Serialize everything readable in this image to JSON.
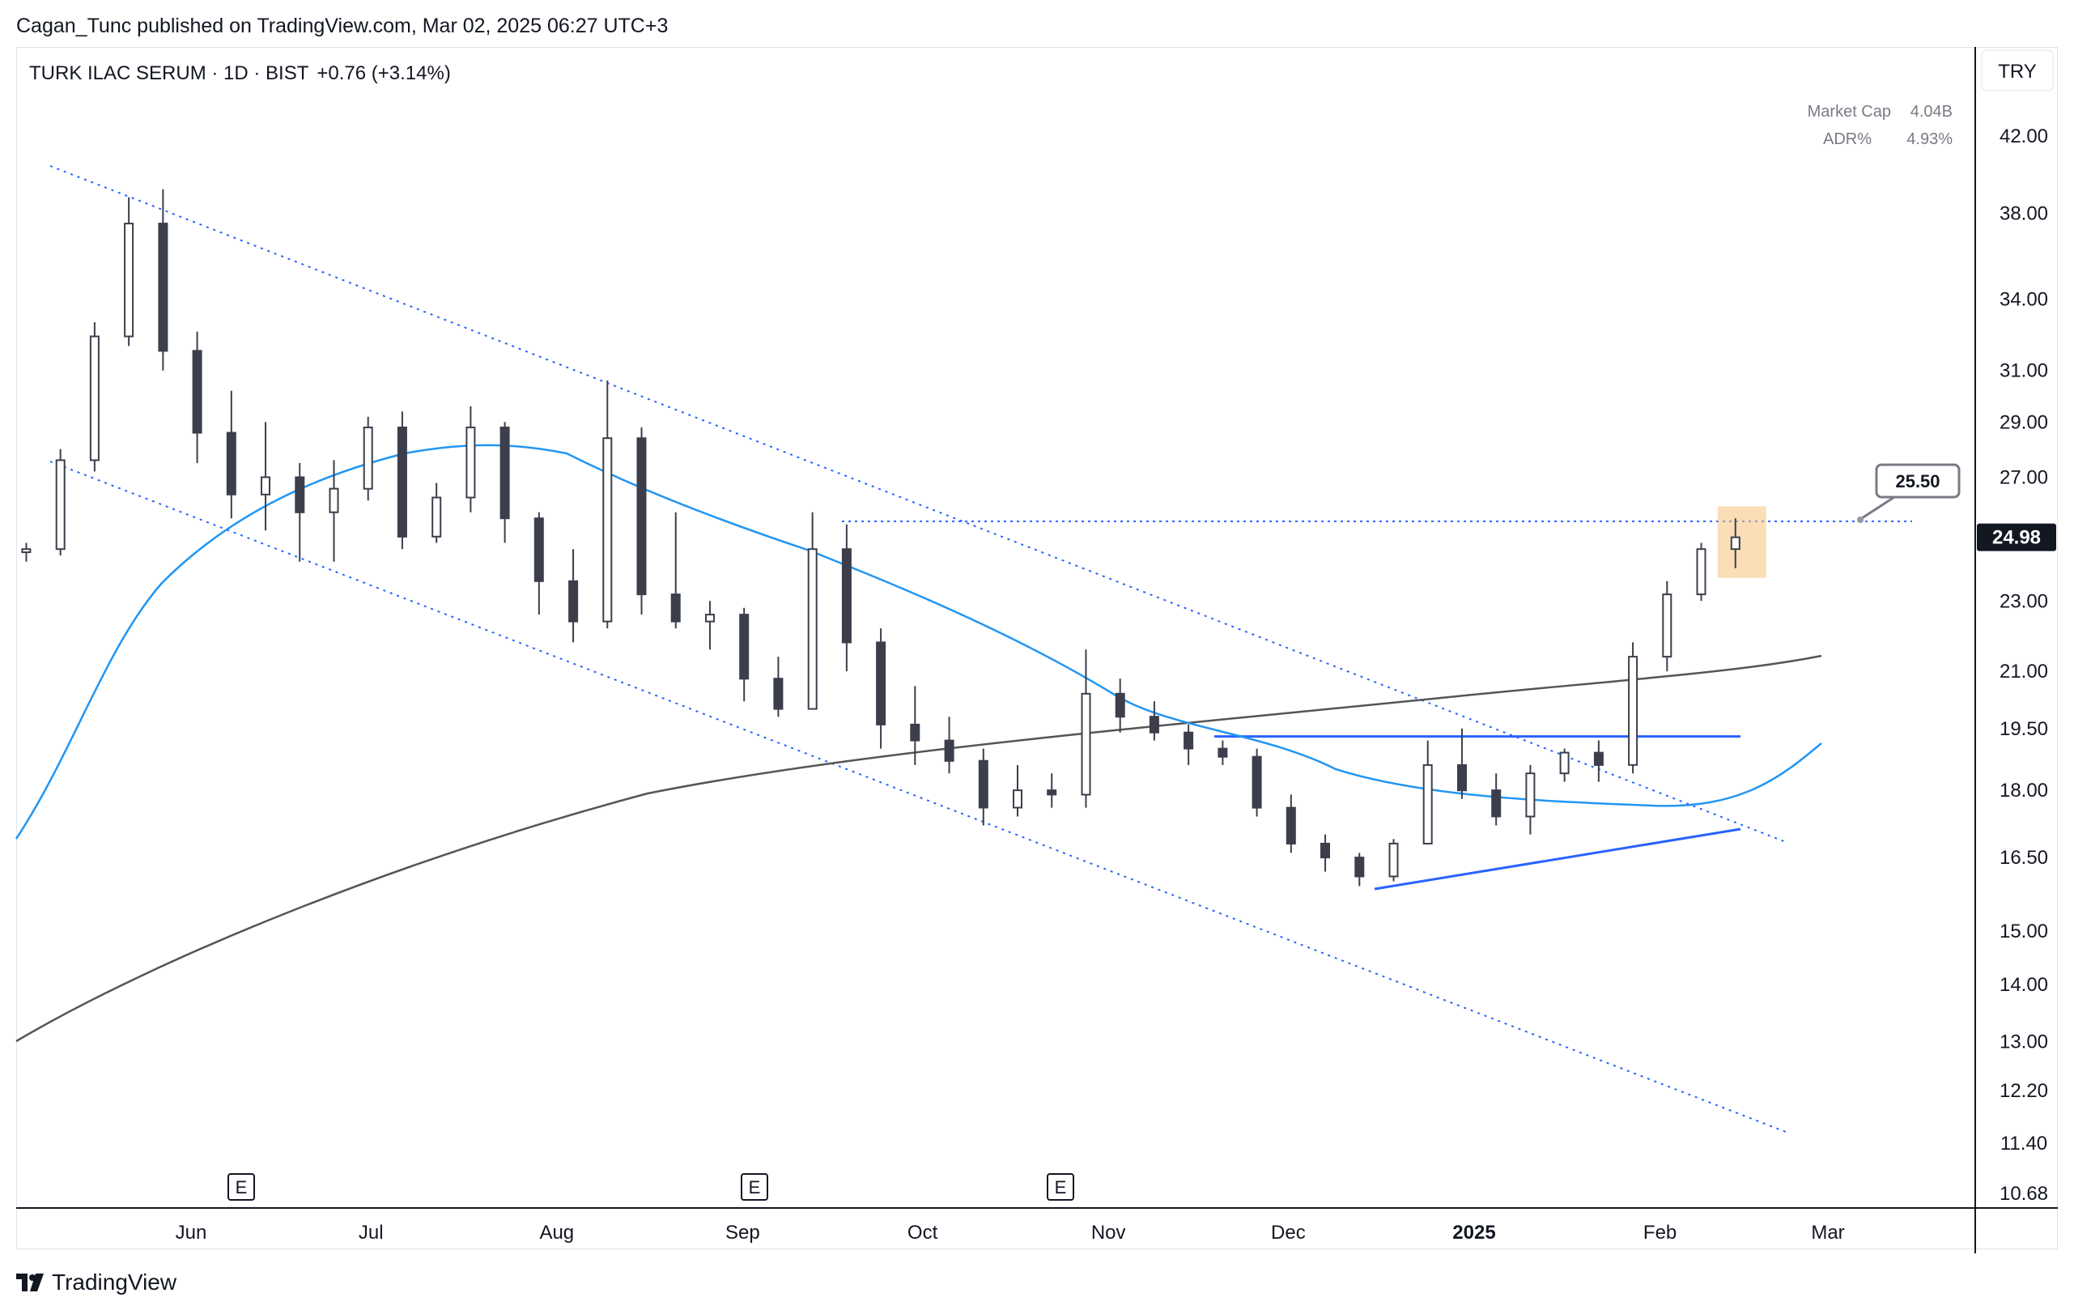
{
  "header": {
    "published_by": "Cagan_Tunc published on TradingView.com, Mar 02, 2025 06:27 UTC+3"
  },
  "legend": {
    "symbol": "TURK ILAC SERUM · 1D · BIST",
    "change": "+0.76 (+3.14%)"
  },
  "currency": "TRY",
  "stats": [
    {
      "label": "Market Cap",
      "value": "4.04B"
    },
    {
      "label": "ADR%",
      "value": "4.93%"
    }
  ],
  "footer": {
    "brand": "TradingView"
  },
  "colors": {
    "up": "#ffffff",
    "down": "#3c3f4b",
    "ma50": "#2196f3",
    "ma200": "#555555",
    "lines": "#2962ff",
    "highlight": "#f7c27a"
  },
  "chart_data": {
    "type": "candlestick",
    "title": "TURK ILAC SERUM · 1D · BIST",
    "scale": "log",
    "y_ticks": [
      "42.00",
      "38.00",
      "34.00",
      "31.00",
      "29.00",
      "27.00",
      "23.00",
      "21.00",
      "19.50",
      "18.00",
      "16.50",
      "15.00",
      "14.00",
      "13.00",
      "12.20",
      "11.40",
      "10.68"
    ],
    "x_ticks": [
      "Jun",
      "Jul",
      "Aug",
      "Sep",
      "Oct",
      "Nov",
      "Dec",
      "2025",
      "Feb",
      "Mar"
    ],
    "last_price": "24.98",
    "annotation_price": "25.50",
    "earnings_markers": [
      "E",
      "E",
      "E"
    ],
    "start": "2024-05-06",
    "resistance_level": 25.5,
    "consolidation_level": 19.3,
    "ohlc_weekly_approx": [
      {
        "o": 24.5,
        "h": 24.8,
        "l": 24.2,
        "c": 24.6
      },
      {
        "o": 24.6,
        "h": 28.0,
        "l": 24.4,
        "c": 27.6
      },
      {
        "o": 27.6,
        "h": 33.0,
        "l": 27.2,
        "c": 32.4
      },
      {
        "o": 32.4,
        "h": 38.8,
        "l": 32.0,
        "c": 37.5
      },
      {
        "o": 37.5,
        "h": 39.2,
        "l": 31.0,
        "c": 31.8
      },
      {
        "o": 31.8,
        "h": 32.6,
        "l": 27.5,
        "c": 28.6
      },
      {
        "o": 28.6,
        "h": 30.2,
        "l": 25.6,
        "c": 26.4
      },
      {
        "o": 26.4,
        "h": 29.0,
        "l": 25.2,
        "c": 27.0
      },
      {
        "o": 27.0,
        "h": 27.5,
        "l": 24.2,
        "c": 25.8
      },
      {
        "o": 25.8,
        "h": 27.6,
        "l": 24.2,
        "c": 26.6
      },
      {
        "o": 26.6,
        "h": 29.2,
        "l": 26.2,
        "c": 28.8
      },
      {
        "o": 28.8,
        "h": 29.4,
        "l": 24.6,
        "c": 25.0
      },
      {
        "o": 25.0,
        "h": 26.8,
        "l": 24.8,
        "c": 26.3
      },
      {
        "o": 26.3,
        "h": 29.6,
        "l": 25.8,
        "c": 28.8
      },
      {
        "o": 28.8,
        "h": 29.0,
        "l": 24.8,
        "c": 25.6
      },
      {
        "o": 25.6,
        "h": 25.8,
        "l": 22.6,
        "c": 23.6
      },
      {
        "o": 23.6,
        "h": 24.6,
        "l": 21.8,
        "c": 22.4
      },
      {
        "o": 22.4,
        "h": 30.6,
        "l": 22.2,
        "c": 28.4
      },
      {
        "o": 28.4,
        "h": 28.8,
        "l": 22.6,
        "c": 23.2
      },
      {
        "o": 23.2,
        "h": 25.8,
        "l": 22.2,
        "c": 22.4
      },
      {
        "o": 22.4,
        "h": 23.0,
        "l": 21.6,
        "c": 22.6
      },
      {
        "o": 22.6,
        "h": 22.8,
        "l": 20.2,
        "c": 20.8
      },
      {
        "o": 20.8,
        "h": 21.4,
        "l": 19.8,
        "c": 20.0
      },
      {
        "o": 20.0,
        "h": 25.8,
        "l": 20.0,
        "c": 24.6
      },
      {
        "o": 24.6,
        "h": 25.4,
        "l": 21.0,
        "c": 21.8
      },
      {
        "o": 21.8,
        "h": 22.2,
        "l": 19.0,
        "c": 19.6
      },
      {
        "o": 19.6,
        "h": 20.6,
        "l": 18.6,
        "c": 19.2
      },
      {
        "o": 19.2,
        "h": 19.8,
        "l": 18.4,
        "c": 18.7
      },
      {
        "o": 18.7,
        "h": 19.0,
        "l": 17.2,
        "c": 17.6
      },
      {
        "o": 17.6,
        "h": 18.6,
        "l": 17.4,
        "c": 18.0
      },
      {
        "o": 18.0,
        "h": 18.4,
        "l": 17.6,
        "c": 17.9
      },
      {
        "o": 17.9,
        "h": 21.6,
        "l": 17.6,
        "c": 20.4
      },
      {
        "o": 20.4,
        "h": 20.8,
        "l": 19.4,
        "c": 19.8
      },
      {
        "o": 19.8,
        "h": 20.2,
        "l": 19.2,
        "c": 19.4
      },
      {
        "o": 19.4,
        "h": 19.6,
        "l": 18.6,
        "c": 19.0
      },
      {
        "o": 19.0,
        "h": 19.2,
        "l": 18.6,
        "c": 18.8
      },
      {
        "o": 18.8,
        "h": 19.0,
        "l": 17.4,
        "c": 17.6
      },
      {
        "o": 17.6,
        "h": 17.9,
        "l": 16.6,
        "c": 16.8
      },
      {
        "o": 16.8,
        "h": 17.0,
        "l": 16.2,
        "c": 16.5
      },
      {
        "o": 16.5,
        "h": 16.6,
        "l": 15.9,
        "c": 16.1
      },
      {
        "o": 16.1,
        "h": 16.9,
        "l": 16.0,
        "c": 16.8
      },
      {
        "o": 16.8,
        "h": 19.2,
        "l": 16.8,
        "c": 18.6
      },
      {
        "o": 18.6,
        "h": 19.5,
        "l": 17.8,
        "c": 18.0
      },
      {
        "o": 18.0,
        "h": 18.4,
        "l": 17.2,
        "c": 17.4
      },
      {
        "o": 17.4,
        "h": 18.6,
        "l": 17.0,
        "c": 18.4
      },
      {
        "o": 18.4,
        "h": 19.0,
        "l": 18.2,
        "c": 18.9
      },
      {
        "o": 18.9,
        "h": 19.2,
        "l": 18.2,
        "c": 18.6
      },
      {
        "o": 18.6,
        "h": 21.8,
        "l": 18.4,
        "c": 21.4
      },
      {
        "o": 21.4,
        "h": 23.6,
        "l": 21.0,
        "c": 23.2
      },
      {
        "o": 23.2,
        "h": 24.8,
        "l": 23.0,
        "c": 24.6
      },
      {
        "o": 24.6,
        "h": 25.6,
        "l": 24.0,
        "c": 24.98
      }
    ]
  }
}
